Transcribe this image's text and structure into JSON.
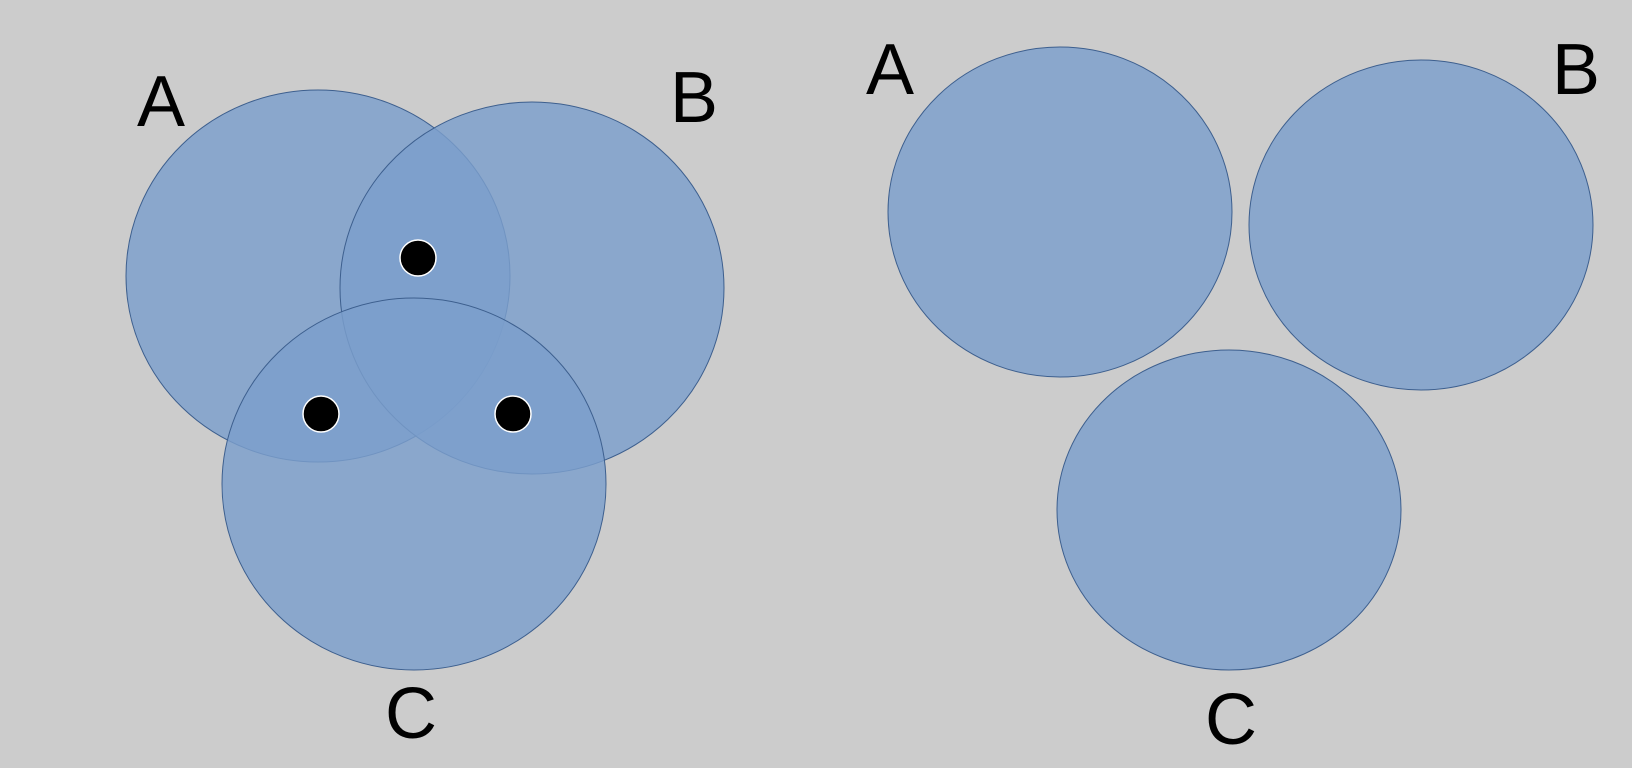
{
  "colors": {
    "background": "#cccccc",
    "circle_fill": "#7b9fcc",
    "circle_stroke": "#3d5f8e",
    "dot_fill": "#000000",
    "dot_stroke": "#ffffff"
  },
  "left_diagram": {
    "label_a": "A",
    "label_b": "B",
    "label_c": "C",
    "dots": [
      "AB",
      "AC",
      "BC"
    ]
  },
  "right_diagram": {
    "label_a": "A",
    "label_b": "B",
    "label_c": "C"
  }
}
